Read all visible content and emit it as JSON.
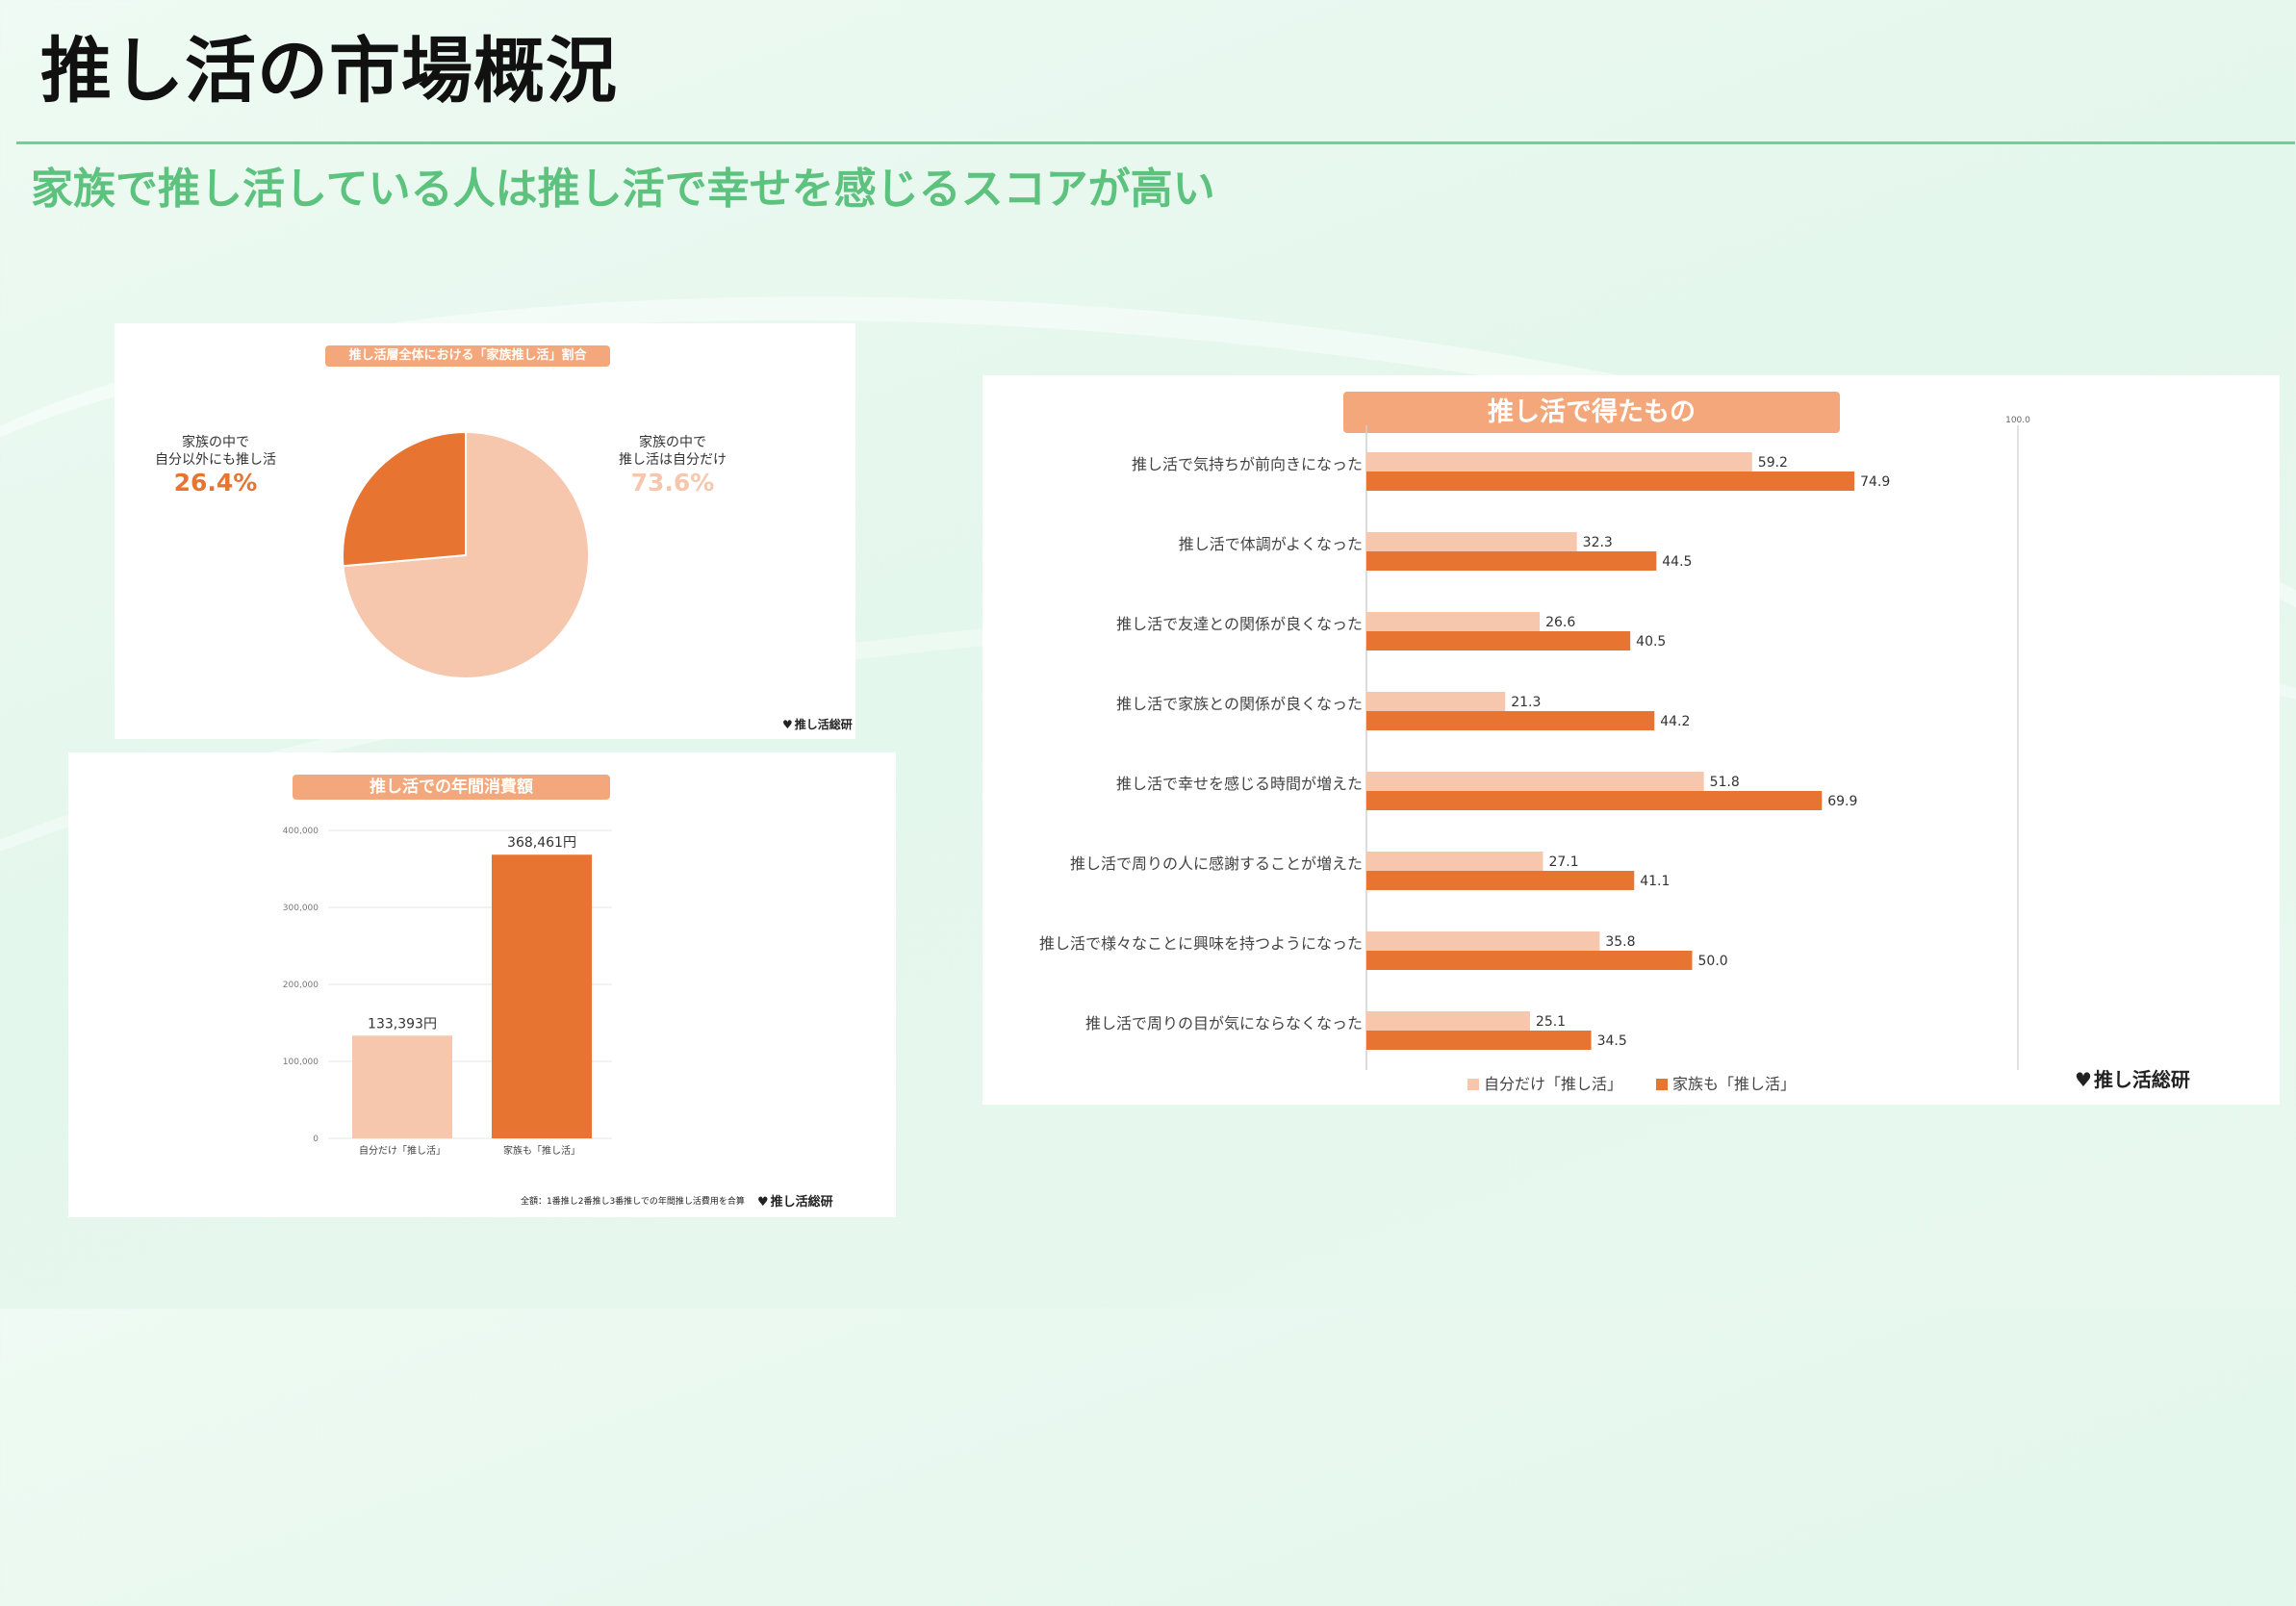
{
  "header": {
    "title": "推し活の市場概況",
    "subtitle": "家族で推し活している人は推し活で幸せを感じるスコアが高い"
  },
  "colors": {
    "light": "#f6c6ad",
    "dark": "#e87432",
    "pill": "#f4a77a",
    "accent_green": "#5cc27e"
  },
  "logo_text": "推し活総研",
  "chart_data": [
    {
      "type": "pie",
      "title": "推し活層全体における「家族推し活」割合",
      "slices": [
        {
          "label_line1": "家族の中で",
          "label_line2": "推し活は自分だけ",
          "value": 73.6,
          "value_label": "73.6%",
          "color": "#f6c6ad"
        },
        {
          "label_line1": "家族の中で",
          "label_line2": "自分以外にも推し活",
          "value": 26.4,
          "value_label": "26.4%",
          "color": "#e87432"
        }
      ]
    },
    {
      "type": "bar",
      "title": "推し活での年間消費額",
      "categories": [
        "自分だけ「推し活」",
        "家族も「推し活」"
      ],
      "values": [
        133393,
        368461
      ],
      "value_labels": [
        "133,393円",
        "368,461円"
      ],
      "colors": [
        "#f6c6ad",
        "#e87432"
      ],
      "ylim": [
        0,
        400000
      ],
      "y_ticks": [
        0,
        100000,
        200000,
        300000,
        400000
      ],
      "y_tick_labels": [
        "0",
        "100,000",
        "200,000",
        "300,000",
        "400,000"
      ],
      "footnote": "全額：1番推し2番推し3番推しでの年間推し活費用を合算"
    },
    {
      "type": "bar",
      "orientation": "horizontal",
      "title": "推し活で得たもの",
      "categories": [
        "推し活で気持ちが前向きになった",
        "推し活で体調がよくなった",
        "推し活で友達との関係が良くなった",
        "推し活で家族との関係が良くなった",
        "推し活で幸せを感じる時間が増えた",
        "推し活で周りの人に感謝することが増えた",
        "推し活で様々なことに興味を持つようになった",
        "推し活で周りの目が気にならなくなった"
      ],
      "series": [
        {
          "name": "自分だけ「推し活」",
          "color": "#f6c6ad",
          "values": [
            59.2,
            32.3,
            26.6,
            21.3,
            51.8,
            27.1,
            35.8,
            25.1
          ],
          "value_labels": [
            "59.2",
            "32.3",
            "26.6",
            "21.3",
            "51.8",
            "27.1",
            "35.8",
            "25.1"
          ]
        },
        {
          "name": "家族も「推し活」",
          "color": "#e87432",
          "values": [
            74.9,
            44.5,
            40.5,
            44.2,
            69.9,
            41.1,
            50.0,
            34.5
          ],
          "value_labels": [
            "74.9",
            "44.5",
            "40.5",
            "44.2",
            "69.9",
            "41.1",
            "50.0",
            "34.5"
          ]
        }
      ],
      "xlim": [
        0,
        100
      ],
      "max_tick_label": "100.0",
      "legend_position": "bottom"
    }
  ]
}
